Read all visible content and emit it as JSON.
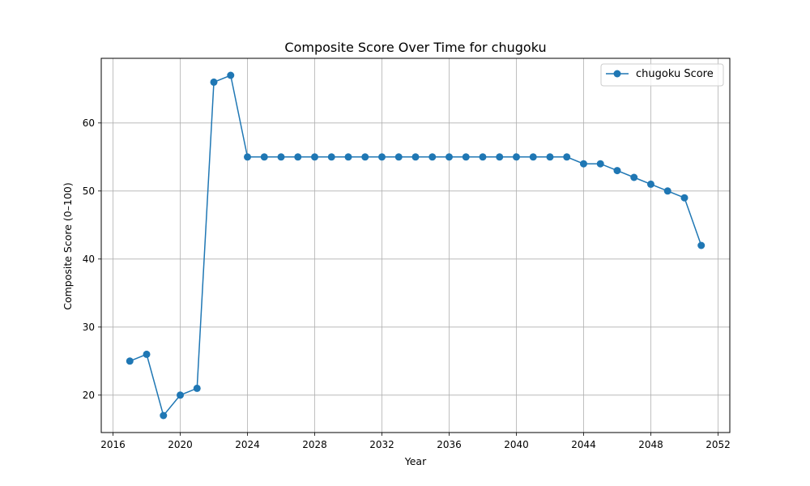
{
  "chart_data": {
    "type": "line",
    "title": "Composite Score Over Time for chugoku",
    "xlabel": "Year",
    "ylabel": "Composite Score (0–100)",
    "xlim": [
      2015.3,
      2052.7
    ],
    "ylim": [
      14.5,
      69.5
    ],
    "xticks": [
      2016,
      2020,
      2024,
      2028,
      2032,
      2036,
      2040,
      2044,
      2048,
      2052
    ],
    "yticks": [
      20,
      30,
      40,
      50,
      60
    ],
    "grid": true,
    "legend_position": "top-right",
    "color": "#1f77b4",
    "series": [
      {
        "name": "chugoku Score",
        "x": [
          2017,
          2018,
          2019,
          2020,
          2021,
          2022,
          2023,
          2024,
          2025,
          2026,
          2027,
          2028,
          2029,
          2030,
          2031,
          2032,
          2033,
          2034,
          2035,
          2036,
          2037,
          2038,
          2039,
          2040,
          2041,
          2042,
          2043,
          2044,
          2045,
          2046,
          2047,
          2048,
          2049,
          2050,
          2051
        ],
        "y": [
          25,
          26,
          17,
          20,
          21,
          66,
          67,
          55,
          55,
          55,
          55,
          55,
          55,
          55,
          55,
          55,
          55,
          55,
          55,
          55,
          55,
          55,
          55,
          55,
          55,
          55,
          55,
          54,
          54,
          53,
          52,
          51,
          50,
          49,
          42
        ]
      }
    ]
  }
}
